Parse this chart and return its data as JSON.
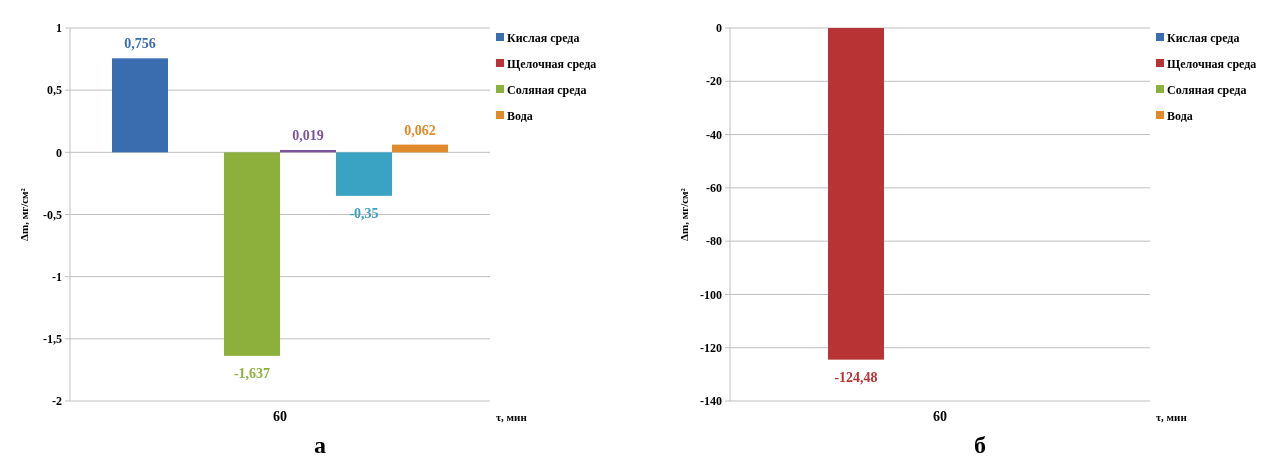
{
  "chart_data": [
    {
      "type": "bar",
      "categories": [
        "60"
      ],
      "xlabel": "τ, мин",
      "ylabel": "Δm, мг/см²",
      "ylim": [
        -2,
        1
      ],
      "yticks": [
        1,
        {
          "value": 0.5,
          "label": "0,5"
        },
        0,
        {
          "value": -0.5,
          "label": "-0,5"
        },
        -1,
        {
          "value": -1.5,
          "label": "-1,5"
        },
        -2
      ],
      "grid": "y",
      "legend": "right",
      "annotations": [
        "а"
      ],
      "series": [
        {
          "name": "Кислая  среда",
          "color": "#3a6db0",
          "values": [
            0.756
          ],
          "value_labels": [
            "0,756"
          ]
        },
        {
          "name": "Щелочная  среда",
          "color": "#b83434",
          "values": [
            null
          ],
          "value_labels": [
            null
          ]
        },
        {
          "name": "Соляная  среда",
          "color": "#8db03c",
          "values": [
            -1.637
          ],
          "value_labels": [
            "-1,637"
          ]
        },
        {
          "color": "#7a559e",
          "values": [
            0.019
          ],
          "value_labels": [
            "0,019"
          ]
        },
        {
          "color": "#3aa2c2",
          "values": [
            -0.35
          ],
          "value_labels": [
            "-0,35"
          ]
        },
        {
          "name": "Вода",
          "color": "#e08a2c",
          "values": [
            0.062
          ],
          "value_labels": [
            "0,062"
          ]
        }
      ]
    },
    {
      "type": "bar",
      "categories": [
        "60"
      ],
      "xlabel": "τ, мин",
      "ylabel": "Δm, мг/см²",
      "ylim": [
        -140,
        0
      ],
      "yticks": [
        0,
        -20,
        -40,
        -60,
        -80,
        -100,
        -120,
        -140
      ],
      "grid": "y",
      "legend": "right",
      "annotations": [
        "б"
      ],
      "series": [
        {
          "name": "Кислая  среда",
          "color": "#3a6db0",
          "values": [
            null
          ],
          "value_labels": [
            null
          ]
        },
        {
          "name": "Щелочная  среда",
          "color": "#b83434",
          "values": [
            -124.48
          ],
          "value_labels": [
            "-124,48"
          ]
        },
        {
          "name": "Соляная  среда",
          "color": "#8db03c",
          "values": [
            null
          ],
          "value_labels": [
            null
          ]
        },
        {
          "values": [
            null
          ],
          "value_labels": [
            null
          ]
        },
        {
          "values": [
            null
          ],
          "value_labels": [
            null
          ]
        },
        {
          "name": "Вода",
          "color": "#e08a2c",
          "values": [
            null
          ],
          "value_labels": [
            null
          ]
        }
      ]
    }
  ]
}
